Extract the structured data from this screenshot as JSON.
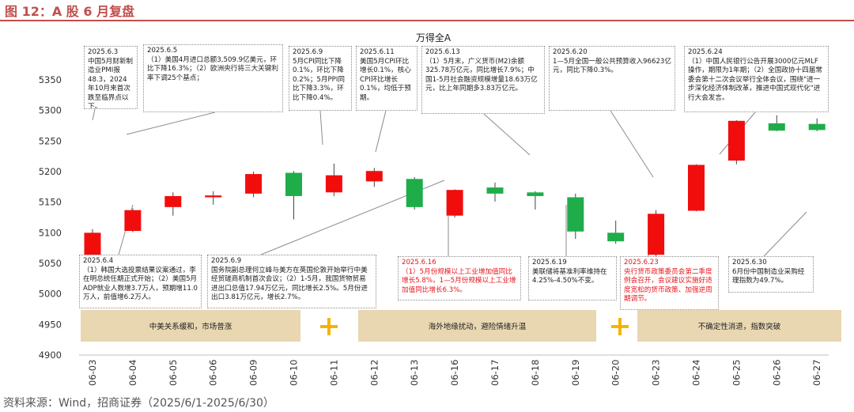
{
  "figure_title": "图 12：A 股 6 月复盘",
  "source": "资料来源：Wind，招商证券（2025/6/1-2025/6/30）",
  "colors": {
    "up": "#f20d0d",
    "down": "#1fad4a",
    "band": "#e8d7b1",
    "plus": "#f5b400",
    "title": "#c0504d"
  },
  "chart_data": {
    "type": "candlestick",
    "title": "万得全A",
    "ylim": [
      4900,
      5350
    ],
    "yticks": [
      4900,
      4950,
      5000,
      5050,
      5100,
      5150,
      5200,
      5250,
      5300,
      5350
    ],
    "categories": [
      "06-03",
      "06-04",
      "06-05",
      "06-06",
      "06-09",
      "06-10",
      "06-11",
      "06-12",
      "06-13",
      "06-16",
      "06-17",
      "06-18",
      "06-19",
      "06-20",
      "06-23",
      "06-24",
      "06-25",
      "06-26",
      "06-27"
    ],
    "candles": [
      {
        "open": 5060,
        "close": 5100,
        "high": 5106,
        "low": 5058
      },
      {
        "open": 5103,
        "close": 5137,
        "high": 5140,
        "low": 5101
      },
      {
        "open": 5142,
        "close": 5160,
        "high": 5166,
        "low": 5128
      },
      {
        "open": 5158,
        "close": 5161,
        "high": 5168,
        "low": 5146
      },
      {
        "open": 5164,
        "close": 5196,
        "high": 5200,
        "low": 5158
      },
      {
        "open": 5198,
        "close": 5160,
        "high": 5201,
        "low": 5122
      },
      {
        "open": 5166,
        "close": 5194,
        "high": 5213,
        "low": 5160
      },
      {
        "open": 5184,
        "close": 5201,
        "high": 5206,
        "low": 5175
      },
      {
        "open": 5188,
        "close": 5142,
        "high": 5191,
        "low": 5138
      },
      {
        "open": 5128,
        "close": 5170,
        "high": 5171,
        "low": 5125
      },
      {
        "open": 5174,
        "close": 5164,
        "high": 5182,
        "low": 5151
      },
      {
        "open": 5166,
        "close": 5160,
        "high": 5168,
        "low": 5138
      },
      {
        "open": 5158,
        "close": 5102,
        "high": 5164,
        "low": 5090
      },
      {
        "open": 5100,
        "close": 5086,
        "high": 5120,
        "low": 5082
      },
      {
        "open": 5064,
        "close": 5131,
        "high": 5137,
        "low": 5060
      },
      {
        "open": 5136,
        "close": 5211,
        "high": 5212,
        "low": 5135
      },
      {
        "open": 5218,
        "close": 5283,
        "high": 5284,
        "low": 5212
      },
      {
        "open": 5279,
        "close": 5267,
        "high": 5292,
        "low": 5266
      },
      {
        "open": 5278,
        "close": 5268,
        "high": 5287,
        "low": 5266
      }
    ]
  },
  "annotations_top": [
    {
      "date": "2025.6.3",
      "text": "中国5月财新制造业PMI报48.3，2024年10月来首次跌至临界点以下。",
      "red": false
    },
    {
      "date": "2025.6.5",
      "text": "（1）美国4月进口总额3,509.9亿美元，环比下降16.3%；（2）欧洲央行将三大关键利率下调25个基点；",
      "red": false
    },
    {
      "date": "2025.6.9",
      "text": "5月CPI同比下降0.1%，环比下降0.2%；5月PPI同比下降3.3%，环比下降0.4%。",
      "red": false
    },
    {
      "date": "2025.6.11",
      "text": "美国5月CPI环比增长0.1%，核心CPI环比增长0.1%，均低于预期。",
      "red": false
    },
    {
      "date": "2025.6.13",
      "text": "（1）5月末，广义货币(M2)余额325.78万亿元，同比增长7.9%；中国1-5月社会融资规模增量18.63万亿元，比上年同期多3.83万亿元。",
      "red": false
    },
    {
      "date": "2025.6.20",
      "text": "1—5月全国一般公共预算收入96623亿元，同比下降0.3%。",
      "red": false
    },
    {
      "date": "2025.6.24",
      "text": "（1）中国人民银行公告开展3000亿元MLF操作，期限为1年期；（2）全国政协十四届常委会第十二次会议举行全体会议，围绕\"进一步深化经济体制改革，推进中国式现代化\"进行大会发言。",
      "red": false
    }
  ],
  "annotations_bottom": [
    {
      "date": "2025.6.4",
      "text": "（1）韩国大选投票结果议案通过，李在明总统任期正式开始；（2）美国5月ADP就业人数增3.7万人，预期增11.0万人，前值增6.2万人。",
      "red": false
    },
    {
      "date": "2025.6.9",
      "text": "国务院副总理何立峰与美方在英国伦敦开始举行中美经贸磋商机制首次会议；（2）1-5月，我国货物贸易进出口总值17.94万亿元，同比增长2.5%。5月份进出口3.81万亿元，增长2.7%。",
      "red": false
    },
    {
      "date": "2025.6.16",
      "text": "（1）5月份规模以上工业增加值同比增长5.8%，1—5月份规模以上工业增加值同比增长6.3%。",
      "red": true
    },
    {
      "date": "2025.6.19",
      "text": "美联储将基准利率维持在4.25%-4.50%不变。",
      "red": false
    },
    {
      "date": "2025.6.23",
      "text": "央行货币政策委员会第二季度例会召开，会议建议实施好适度宽松的货币政策、加强逆周期调节。",
      "red": true
    },
    {
      "date": "2025.6.30",
      "text": "6月份中国制造业采购经理指数为49.7%。",
      "red": false
    }
  ],
  "phases": [
    {
      "label": "中美关系缓和，市场普涨"
    },
    {
      "label": "海外地缘扰动，避险情绪升温"
    },
    {
      "label": "不确定性消退，指数突破"
    }
  ]
}
